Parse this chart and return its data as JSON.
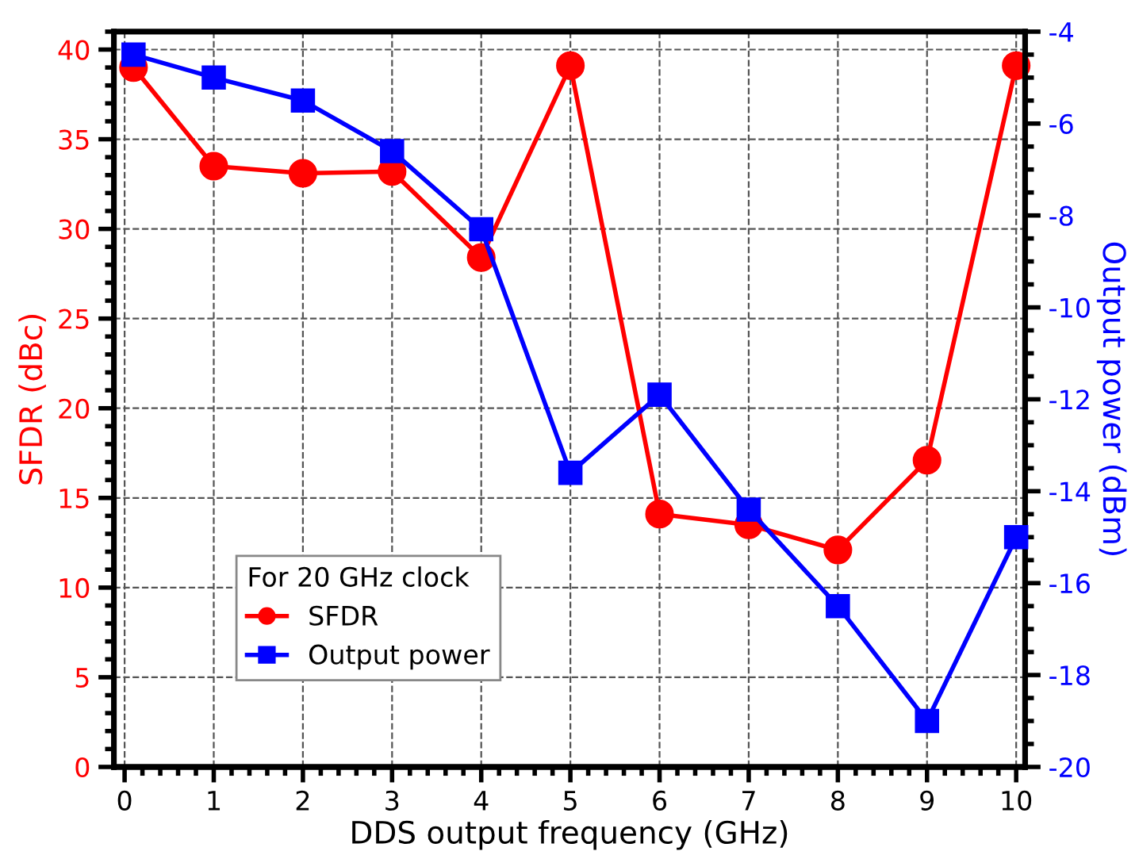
{
  "chart_data": {
    "type": "line",
    "xlabel": "DDS output frequency (GHz)",
    "ylabel": "SFDR (dBc)",
    "y2label": "Output power (dBm)",
    "legend_title": "For 20 GHz clock",
    "x": [
      0.1,
      1,
      2,
      3,
      4,
      5,
      6,
      7,
      8,
      9,
      10
    ],
    "series": [
      {
        "name": "SFDR",
        "color": "#ff0000",
        "marker": "circle",
        "values": [
          39.0,
          33.5,
          33.1,
          33.2,
          28.4,
          39.1,
          14.1,
          13.5,
          12.1,
          17.1,
          39.1
        ]
      },
      {
        "name": "Output power",
        "color": "#0000ff",
        "marker": "square",
        "axis": "y2",
        "values": [
          -4.5,
          -5.0,
          -5.5,
          -6.6,
          -8.3,
          -13.6,
          -11.9,
          -14.4,
          -16.5,
          -19.0,
          -15.0
        ]
      }
    ],
    "xlim": [
      -0.12,
      10.1
    ],
    "xticks": [
      0,
      1,
      2,
      3,
      4,
      5,
      6,
      7,
      8,
      9,
      10
    ],
    "ylim": [
      0,
      41
    ],
    "yticks": [
      0,
      5,
      10,
      15,
      20,
      25,
      30,
      35,
      40
    ],
    "y2lim": [
      -20,
      -4
    ],
    "y2ticks": [
      -20,
      -18,
      -16,
      -14,
      -12,
      -10,
      -8,
      -6,
      -4
    ],
    "grid": true,
    "legend": "bottom left",
    "line_style": "solid"
  }
}
